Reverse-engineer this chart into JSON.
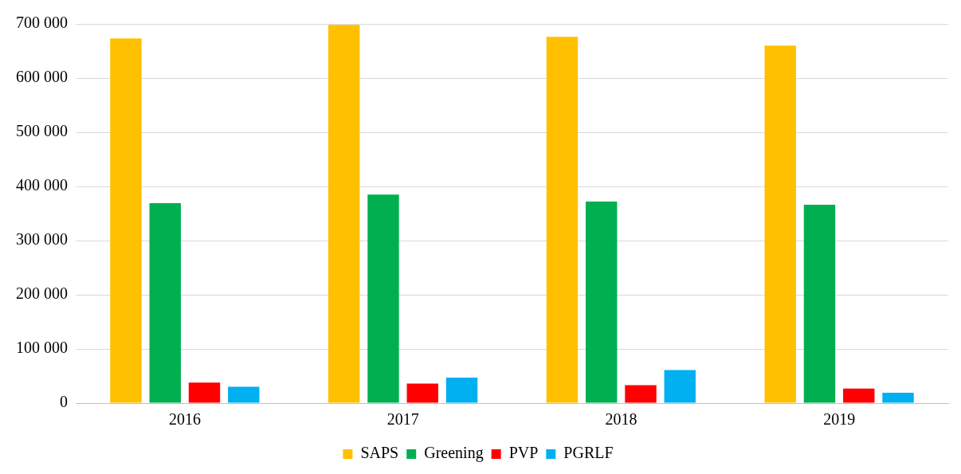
{
  "chart_data": {
    "type": "bar",
    "categories": [
      "2016",
      "2017",
      "2018",
      "2019"
    ],
    "series": [
      {
        "name": "SAPS",
        "color": "#ffc000",
        "values": [
          673000,
          698000,
          676000,
          660000
        ]
      },
      {
        "name": "Greening",
        "color": "#00b050",
        "values": [
          369000,
          385000,
          372000,
          366000
        ]
      },
      {
        "name": "PVP",
        "color": "#ff0000",
        "values": [
          38000,
          36000,
          33000,
          27000
        ]
      },
      {
        "name": "PGRLF",
        "color": "#00b0f0",
        "values": [
          30000,
          47000,
          61000,
          19000
        ]
      }
    ],
    "ylim": [
      0,
      700000
    ],
    "yticks": [
      0,
      {
        "value": 100000,
        "label": "100 000"
      },
      {
        "value": 200000,
        "label": "200 000"
      },
      {
        "value": 300000,
        "label": "300 000"
      },
      {
        "value": 400000,
        "label": "400 000"
      },
      {
        "value": 500000,
        "label": "500 000"
      },
      {
        "value": 600000,
        "label": "600 000"
      },
      {
        "value": 700000,
        "label": "700 000"
      }
    ],
    "grid": "y",
    "legend": "bottom"
  }
}
